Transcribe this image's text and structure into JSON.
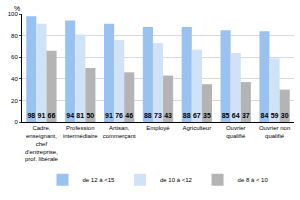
{
  "chart_data": {
    "type": "bar",
    "ylabel": "%",
    "categories": [
      "Cadre, enseignant, chef d'entreprise, prof. libérale",
      "Profession intermédiaire",
      "Artisan, commerçant",
      "Employé",
      "Agriculteur",
      "Ouvrier qualifié",
      "Ouvrier non qualifié"
    ],
    "series": [
      {
        "name": "de 12 à <15",
        "color": "#99c2f0",
        "values": [
          98,
          94,
          91,
          88,
          88,
          85,
          84
        ]
      },
      {
        "name": "de 10 à <12",
        "color": "#cfe2f8",
        "values": [
          91,
          81,
          76,
          73,
          67,
          64,
          59
        ]
      },
      {
        "name": "de 8 à < 10",
        "color": "#b4b4b4",
        "values": [
          66,
          50,
          46,
          43,
          35,
          37,
          30
        ]
      }
    ],
    "ylim": [
      0,
      100
    ],
    "yticks": [
      0,
      20,
      40,
      60,
      80,
      100
    ],
    "grid": true,
    "legend": "bottom",
    "data_labels": true
  }
}
